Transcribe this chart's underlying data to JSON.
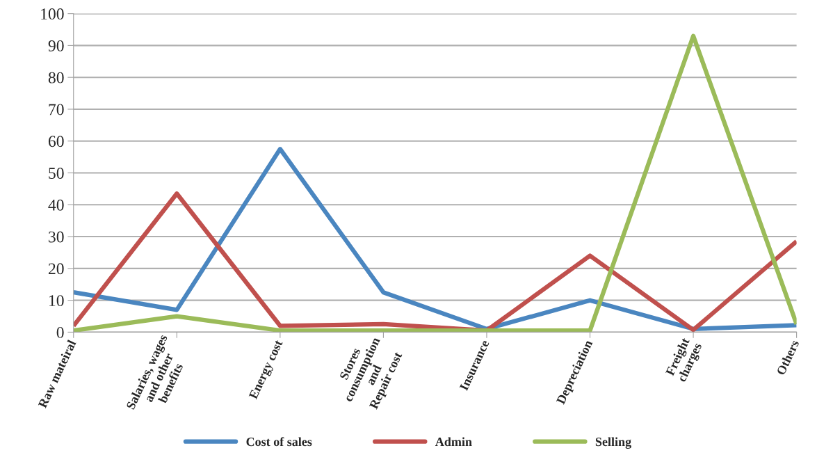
{
  "chart_data": {
    "type": "line",
    "categories": [
      "Raw mateiral",
      "Salaries, wages\nand other\nbenefits",
      "Energy cost",
      "Stores\nconsumption\nand\nRepair cost",
      "Insurance",
      "Depreciation",
      "Freight\ncharges",
      "Others"
    ],
    "series": [
      {
        "name": "Cost of sales",
        "color": "#4a86c0",
        "values": [
          12.5,
          7,
          57.5,
          12.5,
          1,
          10,
          1,
          2.2
        ]
      },
      {
        "name": "Admin",
        "color": "#c0504d",
        "values": [
          2,
          43.5,
          2,
          2.5,
          0.5,
          24,
          0.7,
          28.5
        ]
      },
      {
        "name": "Selling",
        "color": "#9bbb59",
        "values": [
          0.5,
          5,
          0.5,
          0.5,
          0.5,
          0.5,
          93,
          2.5
        ]
      }
    ],
    "ylim": [
      0,
      100
    ],
    "yticks": [
      0,
      10,
      20,
      30,
      40,
      50,
      60,
      70,
      80,
      90,
      100
    ],
    "grid": "y",
    "legend": "bottom",
    "marker": "none",
    "line_style": "solid"
  }
}
